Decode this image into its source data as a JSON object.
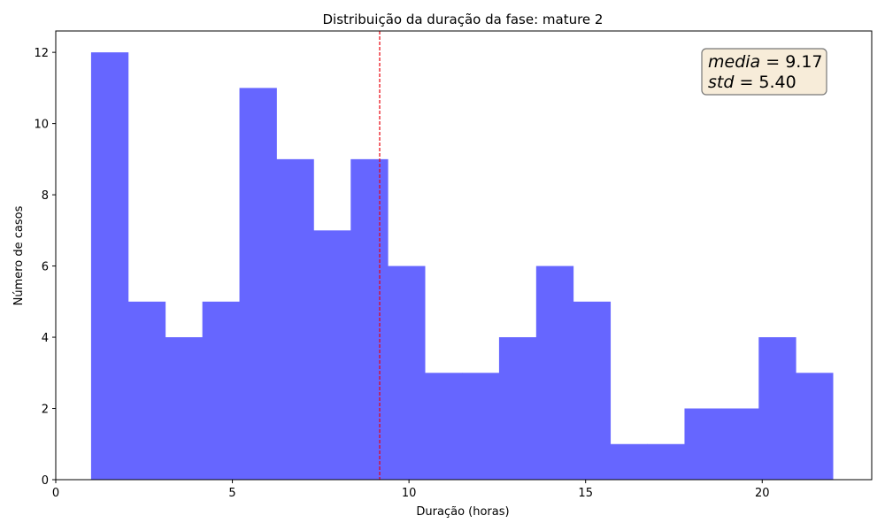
{
  "chart_data": {
    "type": "bar",
    "title": "Distribuição da duração da fase: mature 2",
    "xlabel": "Duração (horas)",
    "ylabel": "Número de casos",
    "xlim": [
      0,
      23.1
    ],
    "ylim": [
      0,
      12.6
    ],
    "xticks": [
      0,
      5,
      10,
      15,
      20
    ],
    "yticks": [
      0,
      2,
      4,
      6,
      8,
      10,
      12
    ],
    "bin_edges": [
      1.0,
      2.05,
      3.1,
      4.15,
      5.2,
      6.25,
      7.3,
      8.35,
      9.4,
      10.45,
      11.5,
      12.55,
      13.6,
      14.65,
      15.7,
      16.75,
      17.8,
      18.85,
      19.9,
      20.95,
      22.0
    ],
    "counts": [
      12,
      5,
      4,
      5,
      11,
      9,
      7,
      9,
      6,
      3,
      3,
      4,
      6,
      5,
      1,
      1,
      2,
      2,
      4,
      3
    ],
    "bar_color": "#6666ff",
    "mean_line": {
      "value": 9.17,
      "color": "#e8000b",
      "style": "dashed"
    },
    "stats_box": {
      "mean_name": "media",
      "mean_value": "9.17",
      "std_name": "std",
      "std_value": "5.40",
      "background": "#f7ecd9",
      "border": "#777777",
      "placement": "top-right"
    },
    "grid": false
  }
}
